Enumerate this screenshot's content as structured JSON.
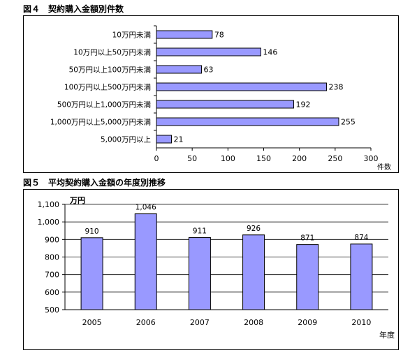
{
  "chart_data": [
    {
      "type": "bar",
      "orientation": "horizontal",
      "title": "図４　契約購入金額別件数",
      "categories": [
        "10万円未満",
        "10万円以上50万円未満",
        "50万円以上100万円未満",
        "100万円以上500万円未満",
        "500万円以上1,000万円未満",
        "1,000万円以上5,000万円未満",
        "5,000万円以上"
      ],
      "values": [
        78,
        146,
        63,
        238,
        192,
        255,
        21
      ],
      "data_labels": [
        "78",
        "146",
        "63",
        "238",
        "192",
        "255",
        "21"
      ],
      "xlabel": "件数",
      "ylabel": "",
      "xlim": [
        0,
        300
      ],
      "ticks": [
        "0",
        "50",
        "100",
        "150",
        "200",
        "250",
        "300"
      ],
      "grid": false,
      "bar_color": "#9999ff"
    },
    {
      "type": "bar",
      "orientation": "vertical",
      "title": "図５　平均契約購入金額の年度別推移",
      "categories": [
        "2005",
        "2006",
        "2007",
        "2008",
        "2009",
        "2010"
      ],
      "values": [
        910,
        1046,
        911,
        926,
        871,
        874
      ],
      "data_labels": [
        "910",
        "1,046",
        "911",
        "926",
        "871",
        "874"
      ],
      "xlabel": "年度",
      "ylabel": "万円",
      "ylim": [
        500,
        1100
      ],
      "ticks": [
        "500",
        "600",
        "700",
        "800",
        "900",
        "1,000",
        "1,100"
      ],
      "grid": true,
      "bar_color": "#9999ff"
    }
  ]
}
